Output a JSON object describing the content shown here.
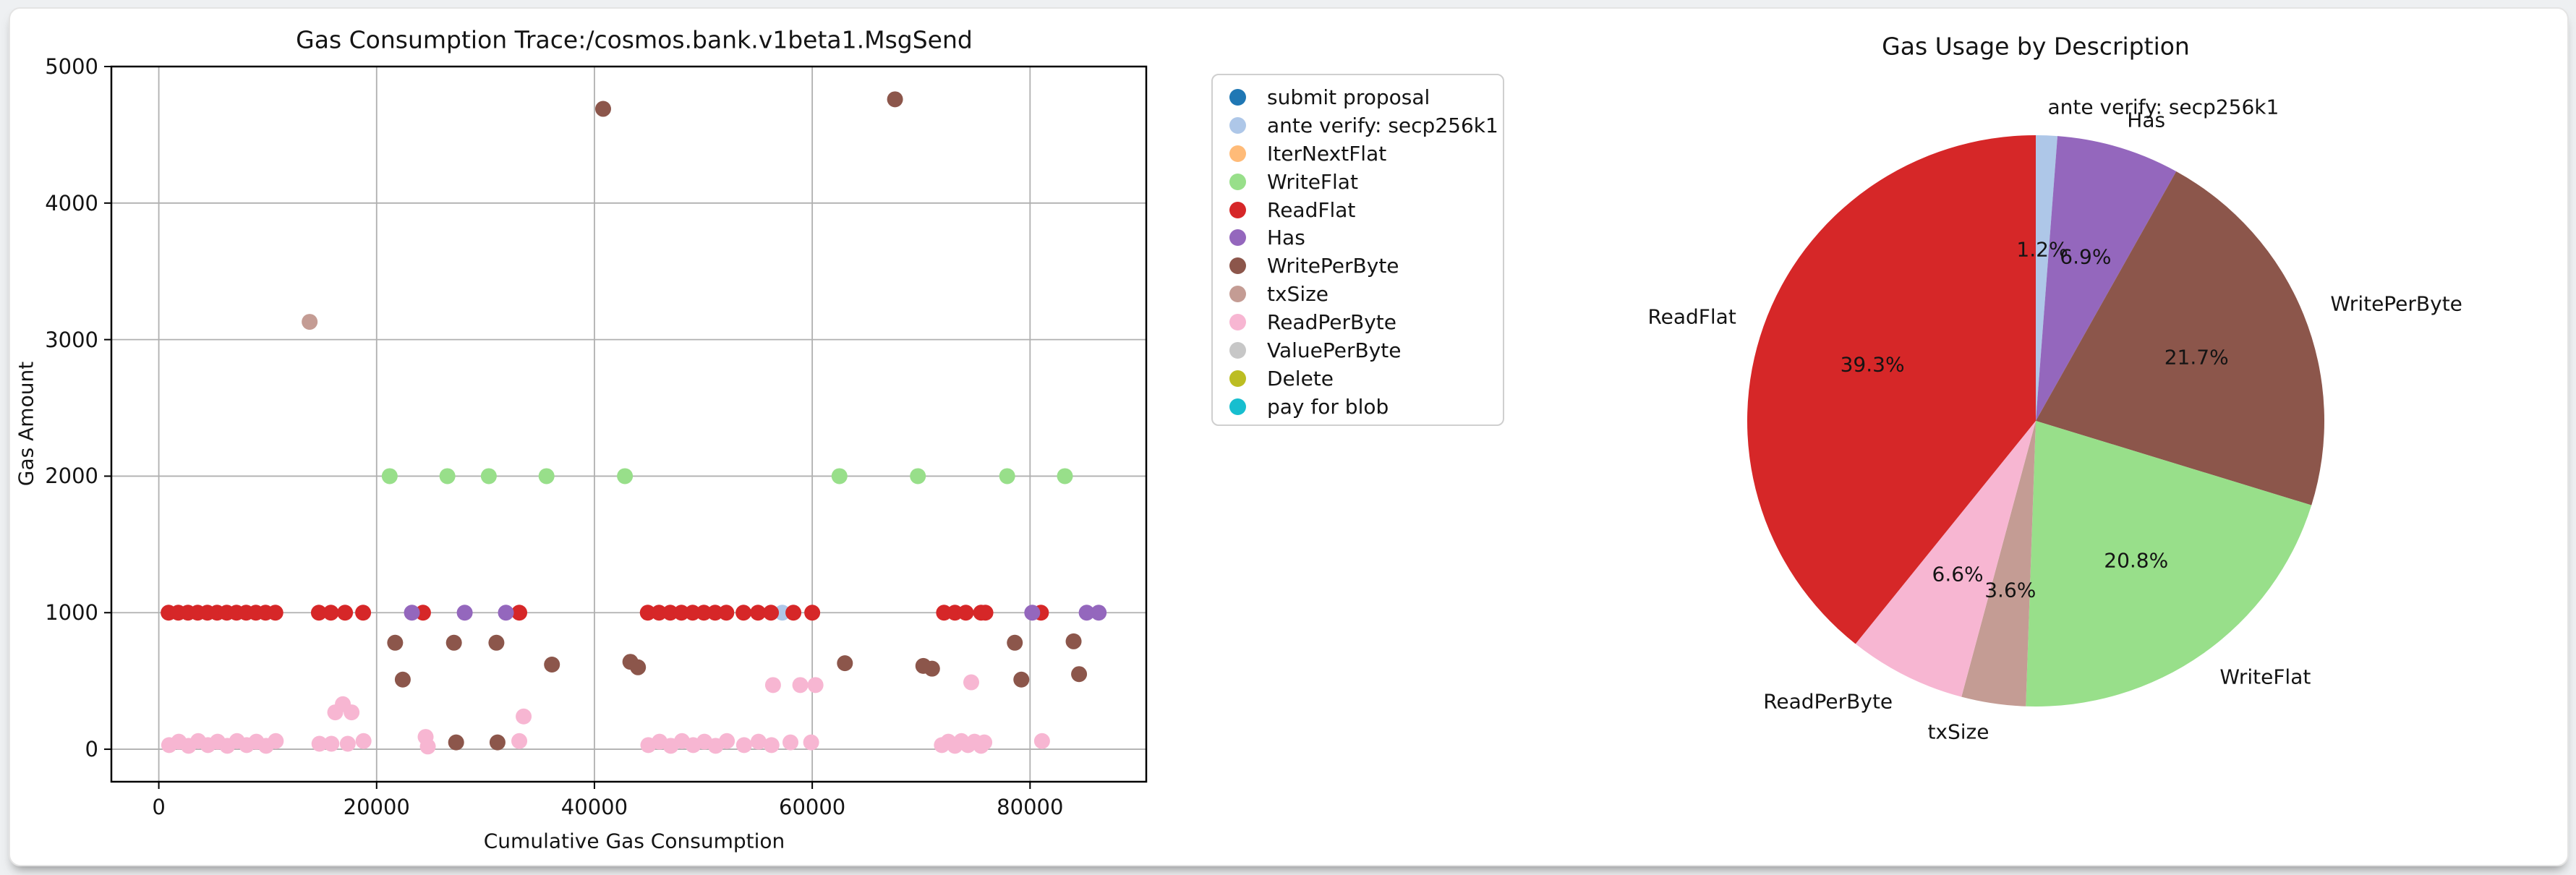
{
  "page": {
    "background": "#eef0f2",
    "card_background": "#ffffff",
    "grid_color": "#b0b0b0",
    "spine_color": "#000000"
  },
  "chart_data": [
    {
      "type": "scatter",
      "title": "Gas Consumption Trace:/cosmos.bank.v1beta1.MsgSend",
      "xlabel": "Cumulative Gas Consumption",
      "ylabel": "Gas Amount",
      "xlim": [
        -4355,
        90670
      ],
      "ylim": [
        -238,
        5000
      ],
      "xticks": [
        0,
        20000,
        40000,
        60000,
        80000
      ],
      "yticks": [
        0,
        1000,
        2000,
        3000,
        4000,
        5000
      ],
      "grid": true,
      "marker_size_px": 22,
      "legend_position": "right-of-axes",
      "series": [
        {
          "name": "submit proposal",
          "color": "#1f77b4",
          "points": []
        },
        {
          "name": "ante verify: secp256k1",
          "color": "#aec7e8",
          "points": [
            [
              57250,
              1000
            ]
          ]
        },
        {
          "name": "IterNextFlat",
          "color": "#ffbb78",
          "points": []
        },
        {
          "name": "WriteFlat",
          "color": "#98df8a",
          "points": [
            [
              21200,
              2000
            ],
            [
              26500,
              2000
            ],
            [
              30300,
              2000
            ],
            [
              35600,
              2000
            ],
            [
              42800,
              2000
            ],
            [
              62500,
              2000
            ],
            [
              69700,
              2000
            ],
            [
              77900,
              2000
            ],
            [
              83200,
              2000
            ]
          ]
        },
        {
          "name": "ReadFlat",
          "color": "#d62728",
          "points": [
            [
              900,
              1000
            ],
            [
              1790,
              1000
            ],
            [
              2680,
              1000
            ],
            [
              3570,
              1000
            ],
            [
              4460,
              1000
            ],
            [
              5350,
              1000
            ],
            [
              6240,
              1000
            ],
            [
              7130,
              1000
            ],
            [
              8020,
              1000
            ],
            [
              8910,
              1000
            ],
            [
              9800,
              1000
            ],
            [
              10700,
              1000
            ],
            [
              14700,
              1000
            ],
            [
              15800,
              1000
            ],
            [
              17100,
              1000
            ],
            [
              18760,
              1000
            ],
            [
              24260,
              1000
            ],
            [
              33100,
              1000
            ],
            [
              44900,
              1000
            ],
            [
              45930,
              1000
            ],
            [
              46960,
              1000
            ],
            [
              47990,
              1000
            ],
            [
              49020,
              1000
            ],
            [
              50050,
              1000
            ],
            [
              51080,
              1000
            ],
            [
              52110,
              1000
            ],
            [
              53690,
              1000
            ],
            [
              55020,
              1000
            ],
            [
              56210,
              1000
            ],
            [
              58270,
              1000
            ],
            [
              60000,
              1000
            ],
            [
              72100,
              1000
            ],
            [
              73100,
              1000
            ],
            [
              74100,
              1000
            ],
            [
              75500,
              1000
            ],
            [
              75900,
              1000
            ],
            [
              81000,
              1000
            ]
          ]
        },
        {
          "name": "Has",
          "color": "#9467bd",
          "points": [
            [
              23240,
              1000
            ],
            [
              28090,
              1000
            ],
            [
              31870,
              1000
            ],
            [
              80200,
              1000
            ],
            [
              85200,
              1000
            ],
            [
              86300,
              1000
            ]
          ]
        },
        {
          "name": "WritePerByte",
          "color": "#8c564b",
          "points": [
            [
              21700,
              780
            ],
            [
              22400,
              510
            ],
            [
              27100,
              780
            ],
            [
              27300,
              50
            ],
            [
              31000,
              780
            ],
            [
              31100,
              50
            ],
            [
              36100,
              620
            ],
            [
              40800,
              4690
            ],
            [
              43300,
              640
            ],
            [
              44000,
              600
            ],
            [
              63000,
              630
            ],
            [
              67600,
              4760
            ],
            [
              70200,
              610
            ],
            [
              71000,
              590
            ],
            [
              78600,
              780
            ],
            [
              79200,
              510
            ],
            [
              84000,
              790
            ],
            [
              84500,
              550
            ]
          ]
        },
        {
          "name": "txSize",
          "color": "#c49c94",
          "points": [
            [
              13850,
              3130
            ]
          ]
        },
        {
          "name": "ReadPerByte",
          "color": "#f7b6d2",
          "points": [
            [
              950,
              30
            ],
            [
              1840,
              55
            ],
            [
              2730,
              25
            ],
            [
              3620,
              60
            ],
            [
              4510,
              30
            ],
            [
              5400,
              55
            ],
            [
              6290,
              25
            ],
            [
              7180,
              60
            ],
            [
              8070,
              30
            ],
            [
              8960,
              55
            ],
            [
              9850,
              25
            ],
            [
              10740,
              60
            ],
            [
              14750,
              40
            ],
            [
              15850,
              40
            ],
            [
              16200,
              270
            ],
            [
              16900,
              330
            ],
            [
              17700,
              270
            ],
            [
              17350,
              40
            ],
            [
              18800,
              60
            ],
            [
              24500,
              90
            ],
            [
              24700,
              20
            ],
            [
              33100,
              60
            ],
            [
              33500,
              240
            ],
            [
              44950,
              30
            ],
            [
              45980,
              55
            ],
            [
              47010,
              25
            ],
            [
              48040,
              60
            ],
            [
              49070,
              30
            ],
            [
              50100,
              55
            ],
            [
              51130,
              25
            ],
            [
              52160,
              60
            ],
            [
              53740,
              30
            ],
            [
              55070,
              55
            ],
            [
              56260,
              30
            ],
            [
              56400,
              470
            ],
            [
              58000,
              50
            ],
            [
              58900,
              470
            ],
            [
              59900,
              50
            ],
            [
              60300,
              470
            ],
            [
              71900,
              30
            ],
            [
              72500,
              55
            ],
            [
              73100,
              25
            ],
            [
              73700,
              60
            ],
            [
              74300,
              30
            ],
            [
              74600,
              490
            ],
            [
              74900,
              55
            ],
            [
              75500,
              25
            ],
            [
              75800,
              50
            ],
            [
              81100,
              60
            ]
          ]
        },
        {
          "name": "ValuePerByte",
          "color": "#c7c7c7",
          "points": []
        },
        {
          "name": "Delete",
          "color": "#bcbd22",
          "points": []
        },
        {
          "name": "pay for blob",
          "color": "#17becf",
          "points": []
        }
      ]
    },
    {
      "type": "pie",
      "title": "Gas Usage by Description",
      "start_angle": 90,
      "direction": "clockwise",
      "label_distance": 1.1,
      "pct_distance": 0.6,
      "slices": [
        {
          "label": "ante verify: secp256k1",
          "pct": 1.2,
          "pct_label": "1.2%",
          "color": "#aec7e8"
        },
        {
          "label": "Has",
          "pct": 6.9,
          "pct_label": "6.9%",
          "color": "#9467bd"
        },
        {
          "label": "WritePerByte",
          "pct": 21.7,
          "pct_label": "21.7%",
          "color": "#8c564b"
        },
        {
          "label": "WriteFlat",
          "pct": 20.8,
          "pct_label": "20.8%",
          "color": "#98df8a"
        },
        {
          "label": "txSize",
          "pct": 3.6,
          "pct_label": "3.6%",
          "color": "#c49c94"
        },
        {
          "label": "ReadPerByte",
          "pct": 6.6,
          "pct_label": "6.6%",
          "color": "#f7b6d2"
        },
        {
          "label": "ReadFlat",
          "pct": 39.3,
          "pct_label": "39.3%",
          "color": "#d62728"
        }
      ]
    }
  ]
}
